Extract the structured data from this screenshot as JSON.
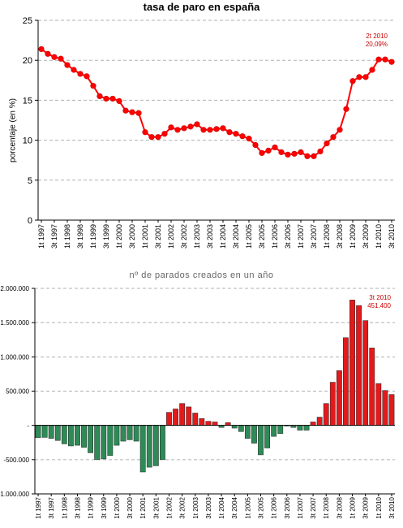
{
  "chart_data": [
    {
      "type": "line",
      "title": "tasa de paro en españa",
      "ylabel": "porcentaje (en %)",
      "xlabel": "",
      "ylim": [
        0,
        25
      ],
      "yticks": [
        "0",
        "5",
        "10",
        "15",
        "20",
        "25"
      ],
      "grid": true,
      "series_color": "#ff0000",
      "x": [
        "1t 1997",
        "2t 1997",
        "3t 1997",
        "4t 1997",
        "1t 1998",
        "2t 1998",
        "3t 1998",
        "4t 1998",
        "1t 1999",
        "2t 1999",
        "3t 1999",
        "4t 1999",
        "1t 2000",
        "2t 2000",
        "3t 2000",
        "4t 2000",
        "1t 2001",
        "2t 2001",
        "3t 2001",
        "4t 2001",
        "1t 2002",
        "2t 2002",
        "3t 2002",
        "4t 2002",
        "1t 2003",
        "2t 2003",
        "3t 2003",
        "4t 2003",
        "1t 2004",
        "2t 2004",
        "3t 2004",
        "4t 2004",
        "1t 2005",
        "2t 2005",
        "3t 2005",
        "4t 2005",
        "1t 2006",
        "2t 2006",
        "3t 2006",
        "4t 2006",
        "1t 2007",
        "2t 2007",
        "3t 2007",
        "4t 2007",
        "1t 2008",
        "2t 2008",
        "3t 2008",
        "4t 2008",
        "1t 2009",
        "2t 2009",
        "3t 2009",
        "4t 2009",
        "1t 2010",
        "2t 2010",
        "3t 2010"
      ],
      "x_tick_labels": [
        "1t 1997",
        "3t 1997",
        "1t 1998",
        "3t 1998",
        "1t 1999",
        "3t 1999",
        "1t 2000",
        "3t 2000",
        "1t 2001",
        "3t 2001",
        "1t 2002",
        "3t 2002",
        "1t 2003",
        "3t 2003",
        "1t 2004",
        "3t 2004",
        "1t 2005",
        "3t 2005",
        "1t 2006",
        "3t 2006",
        "1t 2007",
        "3t 2007",
        "1t 2008",
        "3t 2008",
        "1t 2009",
        "3t 2009",
        "1t 2010",
        "3t 2010"
      ],
      "values": [
        21.4,
        20.8,
        20.4,
        20.2,
        19.4,
        18.8,
        18.3,
        18.0,
        16.8,
        15.5,
        15.2,
        15.2,
        14.9,
        13.7,
        13.5,
        13.4,
        11.0,
        10.4,
        10.4,
        10.8,
        11.6,
        11.3,
        11.5,
        11.7,
        12.0,
        11.3,
        11.3,
        11.4,
        11.5,
        11.0,
        10.8,
        10.5,
        10.2,
        9.4,
        8.4,
        8.7,
        9.1,
        8.5,
        8.2,
        8.3,
        8.5,
        8.0,
        8.0,
        8.6,
        9.6,
        10.4,
        11.3,
        13.9,
        17.4,
        17.9,
        17.9,
        18.8,
        20.1,
        20.1,
        19.8
      ],
      "annotation": {
        "line1": "2t 2010",
        "line2": "20,09%"
      }
    },
    {
      "type": "bar",
      "title": "nº de parados creados en un año",
      "ylabel": "",
      "xlabel": "",
      "ylim": [
        -1000000,
        2000000
      ],
      "yticks": [
        "-1.000.000",
        "-500.000",
        "-",
        "500.000",
        "1.000.000",
        "1.500.000",
        "2.000.000"
      ],
      "grid": true,
      "positive_color": "#e31a1c",
      "negative_color": "#2e8b57",
      "x_tick_labels": [
        "1t 1997",
        "3t 1997",
        "1t 1998",
        "3t 1998",
        "1t 1999",
        "3t 1999",
        "1t 2000",
        "3t 2000",
        "1t 2001",
        "3t 2001",
        "1t 2002",
        "3t 2002",
        "1t 2003",
        "3t 2003",
        "1t 2004",
        "3t 2004",
        "1t 2005",
        "3t 2005",
        "1t 2006",
        "3t 2006",
        "1t 2007",
        "3t 2007",
        "1t 2008",
        "3t 2008",
        "1t 2009",
        "3t 2009",
        "1t 2010",
        "3t 2010"
      ],
      "values": [
        -180000,
        -175000,
        -190000,
        -220000,
        -270000,
        -300000,
        -290000,
        -320000,
        -400000,
        -500000,
        -490000,
        -440000,
        -290000,
        -230000,
        -210000,
        -230000,
        -680000,
        -610000,
        -590000,
        -500000,
        190000,
        240000,
        320000,
        270000,
        180000,
        100000,
        60000,
        50000,
        -30000,
        40000,
        -40000,
        -90000,
        -190000,
        -260000,
        -430000,
        -330000,
        -160000,
        -120000,
        -10000,
        -30000,
        -70000,
        -70000,
        50000,
        120000,
        320000,
        630000,
        800000,
        1280000,
        1830000,
        1750000,
        1530000,
        1130000,
        610000,
        510000,
        451400
      ],
      "annotation": {
        "line1": "3t 2010",
        "line2": "451.400"
      }
    }
  ]
}
